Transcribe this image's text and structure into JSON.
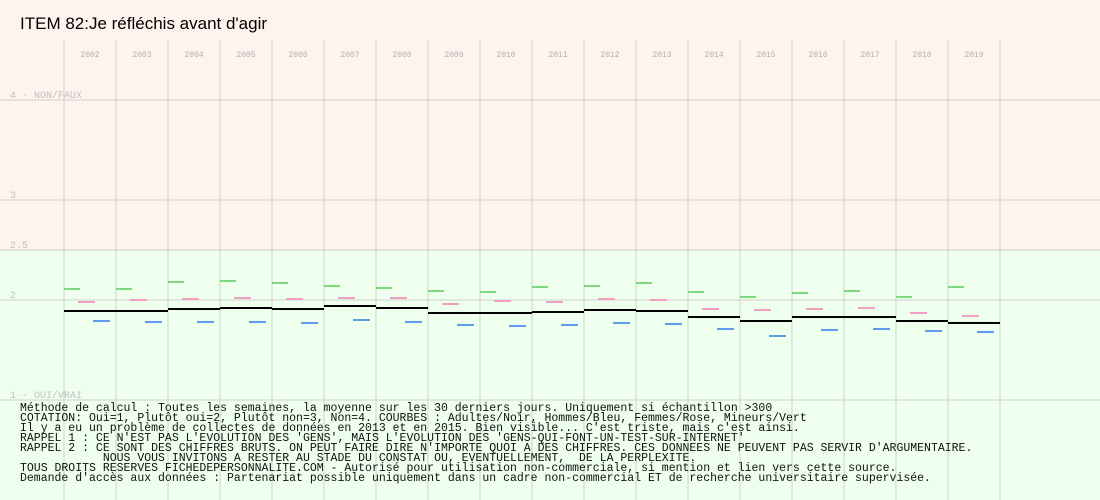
{
  "chart_data": {
    "type": "segments",
    "title": "ITEM 82:Je réfléchis avant d'agir",
    "categories": [
      "2002",
      "2003",
      "2004",
      "2005",
      "2006",
      "2007",
      "2008",
      "2009",
      "2010",
      "2011",
      "2012",
      "2013",
      "2014",
      "2015",
      "2016",
      "2017",
      "2018",
      "2019"
    ],
    "series": [
      {
        "color": "#000000",
        "values": [
          1.89,
          1.89,
          1.91,
          1.92,
          1.91,
          1.94,
          1.92,
          1.87,
          1.87,
          1.88,
          1.9,
          1.89,
          1.83,
          1.79,
          1.83,
          1.83,
          1.79,
          1.77
        ]
      },
      {
        "color": "#7fd87f",
        "values": [
          2.11,
          2.11,
          2.18,
          2.19,
          2.17,
          2.14,
          2.12,
          2.09,
          2.08,
          2.13,
          2.14,
          2.17,
          2.08,
          2.03,
          2.07,
          2.09,
          2.03,
          2.13
        ]
      },
      {
        "color": "#f0a0c0",
        "values": [
          1.98,
          2.0,
          2.01,
          2.02,
          2.01,
          2.02,
          2.02,
          1.96,
          1.99,
          1.98,
          2.01,
          2.0,
          1.91,
          1.9,
          1.91,
          1.92,
          1.87,
          1.84
        ]
      },
      {
        "color": "#5b9cf0",
        "values": [
          1.79,
          1.78,
          1.78,
          1.78,
          1.77,
          1.8,
          1.78,
          1.75,
          1.74,
          1.75,
          1.77,
          1.76,
          1.71,
          1.64,
          1.7,
          1.71,
          1.69,
          1.68
        ]
      }
    ],
    "ylim": [
      0,
      5
    ],
    "yticks": [
      {
        "value": 4,
        "label": "4 - NON/FAUX"
      },
      3,
      2.5,
      2,
      {
        "value": 1,
        "label": "1 - OUI/VRAI"
      }
    ],
    "grid": true,
    "notes": [
      "Méthode de calcul : Toutes les semaines, la moyenne sur les 30 derniers jours. Uniquement si échantillon >300",
      "COTATION: Oui=1, Plutôt oui=2, Plutôt non=3, Non=4. COURBES : Adultes/Noir, Hommes/Bleu, Femmes/Rose, Mineurs/Vert",
      "Il y a eu un problème de collectes de données en 2013 et en 2015. Bien visible... C'est triste, mais c'est ainsi.",
      "RAPPEL 1 : CE N'EST PAS L'EVOLUTION DES 'GENS', MAIS L'EVOLUTION DES 'GENS-QUI-FONT-UN-TEST-SUR-INTERNET'",
      "RAPPEL 2 : CE SONT DES CHIFFRES BRUTS. ON PEUT FAIRE DIRE N'IMPORTE QUOI A DES CHIFFRES. CES DONNEES NE PEUVENT PAS SERVIR D'ARGUMENTAIRE.",
      "            NOUS VOUS INVITONS A RESTER AU STADE DU CONSTAT OU, EVENTUELLEMENT,  DE LA PERPLEXITE.",
      "TOUS DROITS RESERVES FICHEDEPERSONNALITE.COM - Autorisé pour utilisation non-commerciale, si mention et lien vers cette source.",
      "Demande d'accès aux données : Partenariat possible uniquement dans un cadre non-commercial ET de recherche universitaire supervisée."
    ]
  }
}
